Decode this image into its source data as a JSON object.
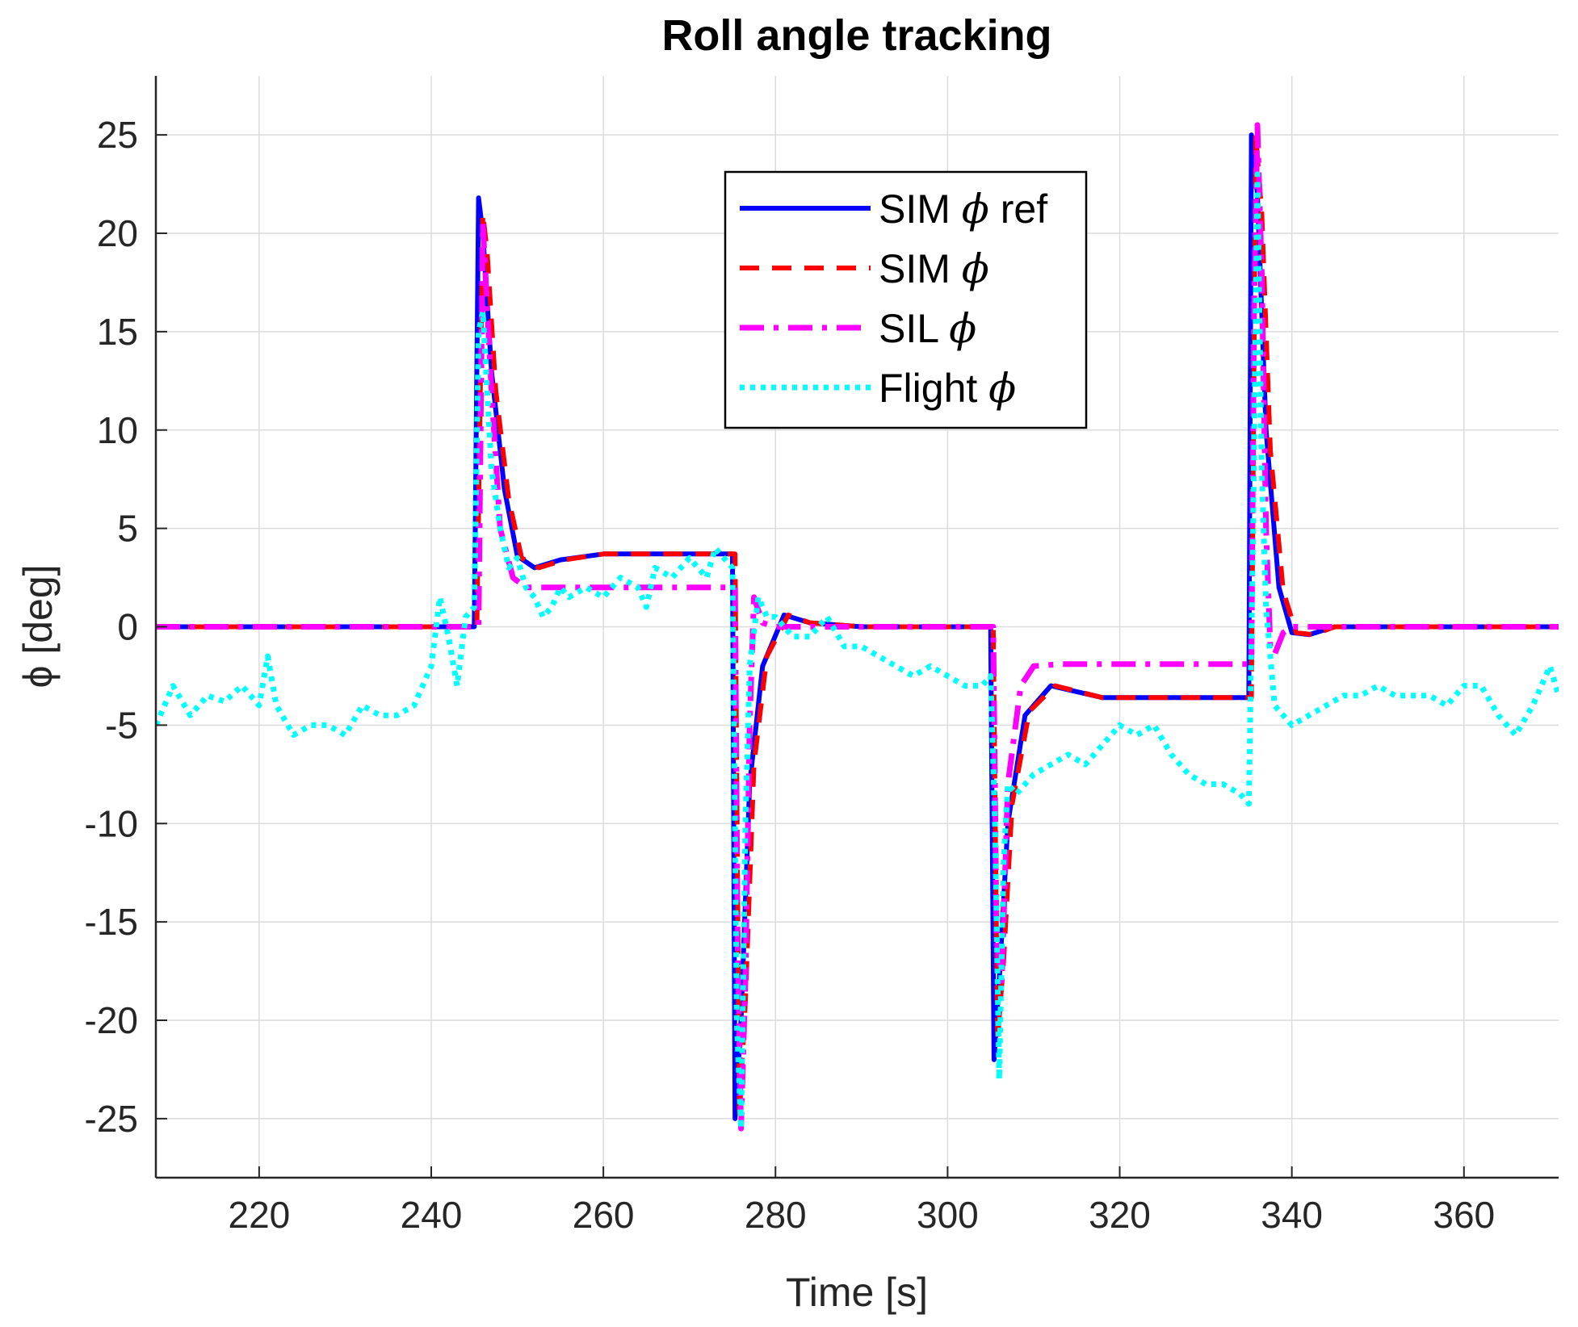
{
  "chart_data": {
    "type": "line",
    "title": "Roll angle tracking",
    "xlabel": "Time [s]",
    "ylabel": "ϕ [deg]",
    "xlim": [
      208,
      371
    ],
    "ylim": [
      -28,
      28
    ],
    "xticks": [
      220,
      240,
      260,
      280,
      300,
      320,
      340,
      360
    ],
    "yticks": [
      -25,
      -20,
      -15,
      -10,
      -5,
      0,
      5,
      10,
      15,
      20,
      25
    ],
    "grid": true,
    "legend_position": "top-center",
    "series": [
      {
        "name": "SIM ϕ ref",
        "legend_label": "SIM",
        "legend_suffix": "ref",
        "color": "#0000FF",
        "style": "solid",
        "x": [
          208,
          245.0,
          245.5,
          246.0,
          247.0,
          248.5,
          250.0,
          252.0,
          255.0,
          260.0,
          275.0,
          275.3,
          276.0,
          277.0,
          278.5,
          281.0,
          284.0,
          290.0,
          305.0,
          305.4,
          306.0,
          307.0,
          309.0,
          312.0,
          318.0,
          335.0,
          335.3,
          336.0,
          337.0,
          338.5,
          340.0,
          342.0,
          345.0,
          371
        ],
        "y": [
          0,
          0,
          21.8,
          20.0,
          13.0,
          7.0,
          3.6,
          3.0,
          3.4,
          3.7,
          3.7,
          -25.0,
          -20.0,
          -8.0,
          -2.0,
          0.6,
          0.2,
          0,
          0,
          -22.0,
          -18.0,
          -10.0,
          -4.5,
          -3.0,
          -3.6,
          -3.6,
          25.0,
          22.0,
          10.0,
          2.0,
          -0.3,
          -0.4,
          0,
          0
        ]
      },
      {
        "name": "SIM ϕ",
        "legend_label": "SIM",
        "legend_suffix": "",
        "color": "#FF0000",
        "style": "dashed",
        "x": [
          208,
          245.3,
          246.0,
          246.5,
          247.5,
          249.0,
          250.5,
          252.5,
          255.5,
          260.0,
          275.3,
          275.8,
          276.5,
          277.5,
          279.0,
          281.5,
          284.0,
          290.0,
          305.3,
          305.8,
          306.5,
          307.5,
          309.5,
          312.5,
          318.0,
          335.3,
          335.8,
          336.5,
          337.5,
          339.0,
          340.5,
          342.5,
          345.0,
          371
        ],
        "y": [
          0,
          0,
          21.0,
          19.0,
          12.0,
          6.5,
          3.5,
          3.0,
          3.4,
          3.7,
          3.7,
          -25.0,
          -19.0,
          -7.0,
          -1.5,
          0.6,
          0.2,
          0,
          0,
          -21.0,
          -17.0,
          -9.0,
          -4.3,
          -3.0,
          -3.6,
          -3.6,
          25.0,
          21.0,
          9.0,
          1.8,
          -0.3,
          -0.4,
          0,
          0
        ]
      },
      {
        "name": "SIL ϕ",
        "legend_label": "SIL",
        "legend_suffix": "",
        "color": "#FF00FF",
        "style": "dashdot",
        "x": [
          208,
          245.5,
          246.0,
          247.0,
          248.0,
          249.5,
          251.0,
          254.0,
          275.3,
          275.6,
          276.0,
          276.5,
          277.0,
          277.5,
          278.5,
          280.0,
          290.0,
          305.3,
          305.7,
          306.3,
          307.0,
          308.5,
          310.0,
          313.0,
          335.3,
          335.6,
          336.0,
          336.5,
          337.0,
          337.5,
          338.0,
          339.0,
          340.0,
          342.0,
          371
        ],
        "y": [
          0,
          0,
          20.5,
          12.0,
          5.0,
          2.5,
          2.0,
          2.0,
          2.0,
          -16.0,
          -25.5,
          -18.0,
          -5.0,
          1.5,
          0.2,
          0,
          0,
          0,
          -16.0,
          -18.0,
          -8.0,
          -3.0,
          -2.0,
          -1.9,
          -1.9,
          16.0,
          25.5,
          18.0,
          5.0,
          -1.0,
          -1.4,
          -0.3,
          0,
          0,
          0
        ]
      },
      {
        "name": "Flight ϕ",
        "legend_label": "Flight",
        "legend_suffix": "",
        "color": "#00FFFF",
        "style": "dotted",
        "x": [
          208,
          210,
          212,
          214,
          216,
          218,
          220,
          221,
          222,
          224,
          226,
          228,
          230,
          232,
          234,
          236,
          238,
          240,
          241,
          242,
          243,
          244,
          245,
          245.5,
          246,
          247,
          248,
          249,
          250,
          251,
          252,
          253,
          254,
          255,
          256,
          258,
          260,
          262,
          264,
          265,
          266,
          268,
          270,
          272,
          273,
          274,
          275,
          275.5,
          276,
          276.5,
          277,
          278,
          279,
          280,
          282,
          284,
          286,
          288,
          290,
          292,
          294,
          296,
          298,
          300,
          302,
          304,
          305,
          305.5,
          306,
          306.5,
          307,
          308,
          310,
          312,
          314,
          316,
          318,
          320,
          322,
          324,
          326,
          328,
          330,
          332,
          334,
          335,
          335.5,
          336,
          336.5,
          337,
          338,
          340,
          342,
          344,
          346,
          348,
          350,
          352,
          354,
          356,
          358,
          360,
          362,
          364,
          366,
          368,
          370,
          371
        ],
        "y": [
          -5.0,
          -3.0,
          -4.5,
          -3.5,
          -3.8,
          -3.0,
          -4.0,
          -1.5,
          -4.0,
          -5.5,
          -5.0,
          -5.0,
          -5.5,
          -4.0,
          -4.5,
          -4.5,
          -4.0,
          -2.0,
          1.5,
          -0.5,
          -3.0,
          0.5,
          1.0,
          15.0,
          16.0,
          8.0,
          5.0,
          3.0,
          3.5,
          2.0,
          1.5,
          0.5,
          1.0,
          2.0,
          1.5,
          2.0,
          1.5,
          2.5,
          2.0,
          1.0,
          3.0,
          2.5,
          3.5,
          2.5,
          4.0,
          3.5,
          3.0,
          -20.0,
          -25.5,
          -10.0,
          -2.0,
          1.5,
          0.5,
          0.5,
          -0.5,
          -0.5,
          0.5,
          -1.0,
          -1.0,
          -1.5,
          -2.0,
          -2.5,
          -2.0,
          -2.5,
          -3.0,
          -3.0,
          -2.5,
          -10.0,
          -23.0,
          -12.0,
          -8.0,
          -8.5,
          -7.5,
          -7.0,
          -6.5,
          -7.0,
          -6.0,
          -5.0,
          -5.5,
          -5.0,
          -6.5,
          -7.5,
          -8.0,
          -8.0,
          -8.5,
          -9.0,
          5.0,
          23.0,
          8.0,
          1.0,
          -4.0,
          -5.0,
          -4.5,
          -4.0,
          -3.5,
          -3.5,
          -3.0,
          -3.5,
          -3.5,
          -3.5,
          -4.0,
          -3.0,
          -3.0,
          -4.5,
          -5.5,
          -4.0,
          -2.0,
          -3.5
        ]
      }
    ]
  }
}
